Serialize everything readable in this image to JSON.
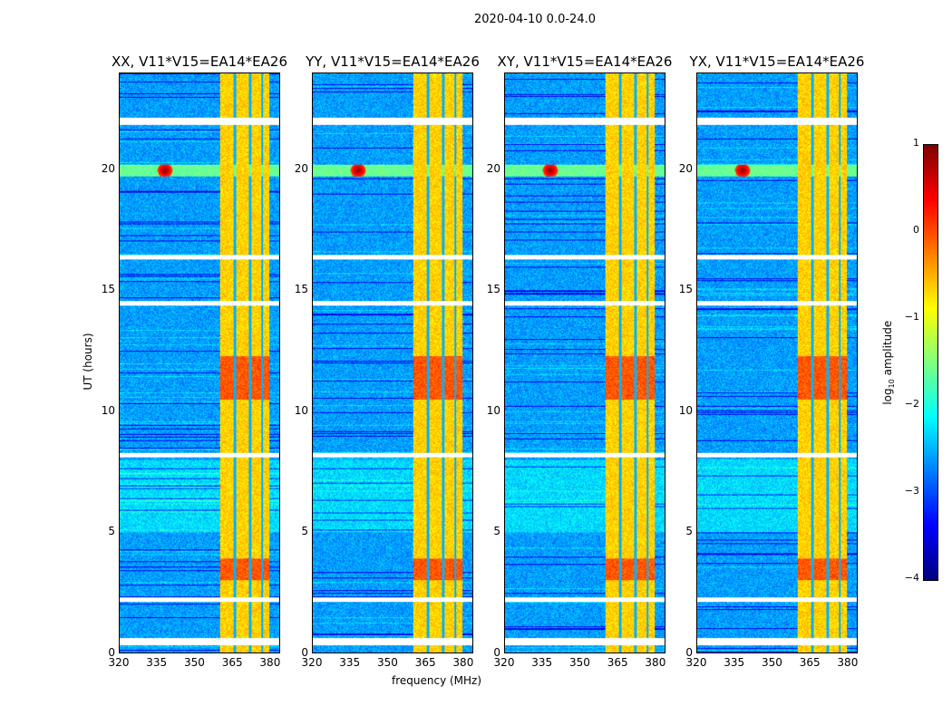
{
  "chart_data": {
    "type": "heatmap",
    "title": "2020-04-10 0.0-24.0",
    "xlabel": "frequency (MHz)",
    "ylabel": "UT (hours)",
    "xlim": [
      320,
      384
    ],
    "ylim": [
      0,
      24
    ],
    "xticks": [
      "320",
      "335",
      "350",
      "365",
      "380"
    ],
    "yticks": [
      "0",
      "5",
      "10",
      "15",
      "20"
    ],
    "panels": [
      {
        "title": "XX, V11*V15=EA14*EA26"
      },
      {
        "title": "YY, V11*V15=EA14*EA26"
      },
      {
        "title": "XY, V11*V15=EA14*EA26"
      },
      {
        "title": "YX, V11*V15=EA14*EA26"
      }
    ],
    "colorbar": {
      "label": "log10 amplitude",
      "label_main": "log",
      "label_sub": "10",
      "label_tail": " amplitude",
      "range": [
        -4,
        1
      ],
      "ticks": [
        "1",
        "0",
        "−1",
        "−2",
        "−3",
        "−4"
      ],
      "colormap": "jet"
    },
    "features": {
      "rfi_band_mhz": [
        360,
        380
      ],
      "flagged_hours": [
        [
          21.9,
          22.2
        ],
        [
          16.3,
          16.5
        ],
        [
          14.4,
          14.6
        ],
        [
          8.1,
          8.3
        ],
        [
          2.1,
          2.3
        ],
        [
          0.3,
          0.6
        ]
      ],
      "burst": {
        "hour": 20,
        "freq_mhz": 338,
        "log_amp": 1
      }
    }
  }
}
